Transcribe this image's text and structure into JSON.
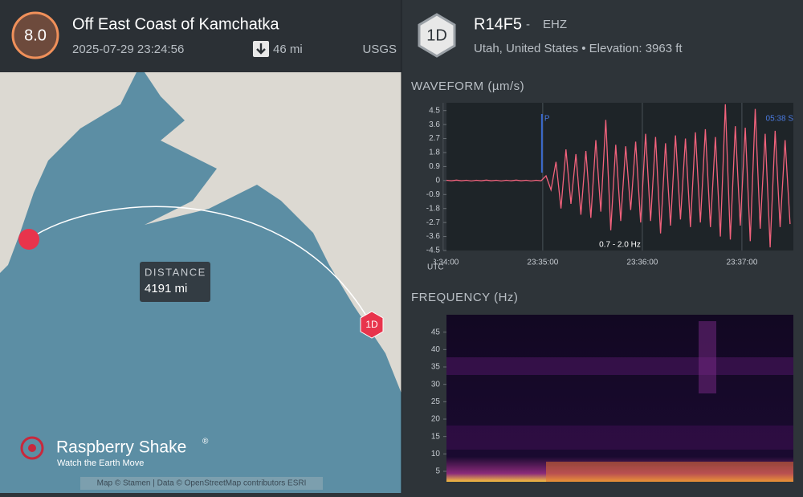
{
  "event": {
    "magnitude": "8.0",
    "title": "Off East Coast of Kamchatka",
    "time": "2025-07-29 23:24:56",
    "depth": "46 mi",
    "source": "USGS"
  },
  "station": {
    "badge": "1D",
    "code": "R14F5",
    "separator": "-",
    "channel": "EHZ",
    "location": "Utah, United States • Elevation: 3963 ft"
  },
  "map": {
    "distance_label": "DISTANCE",
    "distance": "4191 mi",
    "station_marker": "1D",
    "brand": "Raspberry Shake",
    "brand_mark": "®",
    "tagline": "Watch the Earth Move",
    "attribution": "Map © Stamen | Data © OpenStreetMap contributors ESRI"
  },
  "chart_data": [
    {
      "type": "line",
      "title": "WAVEFORM (µm/s)",
      "color": "#f2627c",
      "x_label": "UTC",
      "filter_label": "0.7 - 2.0 Hz",
      "pick_p": {
        "label": "P",
        "x": 59.5
      },
      "pick_s": "05:38 S",
      "x": [
        2,
        5,
        8,
        11,
        14,
        17,
        20,
        23,
        26,
        29,
        32,
        35,
        38,
        41,
        44,
        47,
        50,
        53,
        56,
        59,
        62,
        65,
        68,
        71,
        74,
        77,
        80,
        83,
        86,
        89,
        92,
        95,
        98,
        101,
        104,
        107,
        110,
        113,
        116,
        119,
        122,
        125,
        128,
        131,
        134,
        137,
        140,
        143,
        146,
        149,
        152,
        155,
        158,
        161,
        164,
        167,
        170,
        173,
        176,
        179,
        182,
        185,
        188,
        191,
        194,
        197,
        200,
        203,
        206,
        209
      ],
      "values": [
        0.02,
        -0.02,
        0.03,
        -0.02,
        0.02,
        -0.03,
        0.02,
        -0.02,
        0.03,
        -0.02,
        0.02,
        -0.03,
        0.02,
        -0.02,
        0.03,
        -0.02,
        0.02,
        -0.03,
        0.02,
        -0.02,
        0.3,
        -0.6,
        1.2,
        -1.8,
        2.0,
        -1.5,
        1.7,
        -2.2,
        1.9,
        -2.4,
        2.6,
        -2.0,
        3.9,
        -3.2,
        2.3,
        -2.6,
        2.2,
        -1.9,
        2.5,
        -2.7,
        3.0,
        -2.6,
        2.8,
        -3.4,
        2.4,
        -2.9,
        2.9,
        -2.5,
        2.7,
        -3.0,
        3.1,
        -2.7,
        3.3,
        -3.0,
        2.8,
        -3.6,
        4.9,
        -3.8,
        3.5,
        -2.9,
        3.4,
        -3.9,
        4.6,
        -3.1,
        3.0,
        -4.3,
        3.2,
        -3.0,
        2.6,
        -2.8
      ],
      "xlim": [
        2,
        211
      ],
      "xticks": [
        {
          "value": 0,
          "label": "23:34:00"
        },
        {
          "value": 60,
          "label": "23:35:00"
        },
        {
          "value": 120,
          "label": "23:36:00"
        },
        {
          "value": 180,
          "label": "23:37:00"
        }
      ],
      "ylim": [
        -4.5,
        5.0
      ],
      "yticks": [
        4.5,
        3.6,
        2.7,
        1.8,
        0.9,
        0,
        -0.9,
        -1.8,
        -2.7,
        -3.6,
        -4.5
      ]
    },
    {
      "type": "spectrogram",
      "title": "FREQUENCY (Hz)",
      "ylim": [
        2,
        50
      ],
      "yticks": [
        5,
        10,
        15,
        20,
        25,
        30,
        35,
        40,
        45
      ]
    }
  ]
}
